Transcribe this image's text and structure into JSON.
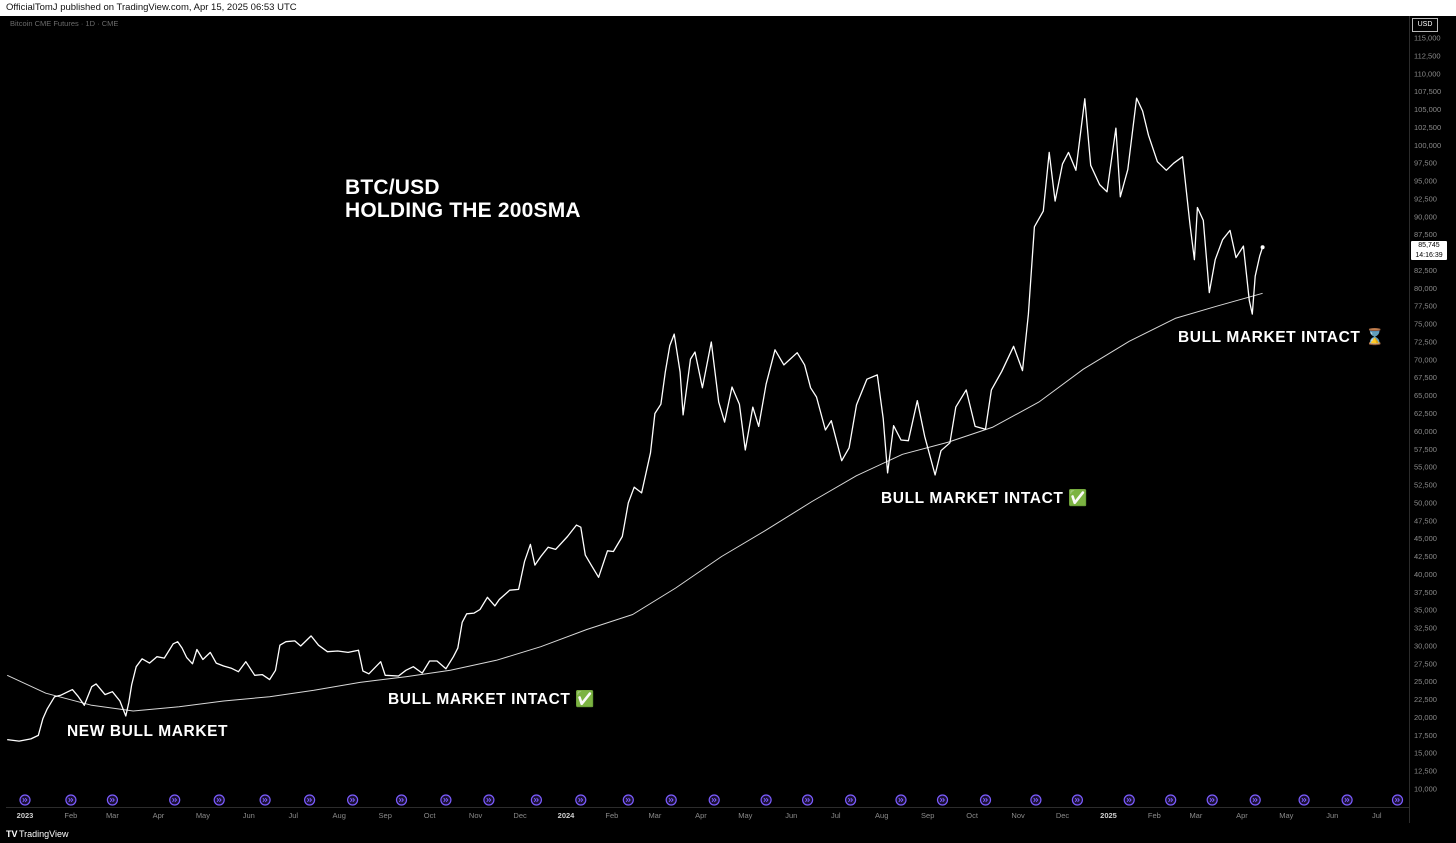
{
  "header": {
    "published_by": "OfficialTomJ published on TradingView.com, Apr 15, 2025 06:53 UTC"
  },
  "instrument": "Bitcoin CME Futures · 1D · CME",
  "currency": "USD",
  "last_price": {
    "value": "85,745",
    "countdown": "14:16:39"
  },
  "footer": {
    "logo": "TV",
    "brand": "TradingView"
  },
  "title_lines": [
    "BTC/USD",
    "HOLDING THE 200SMA"
  ],
  "annotations": {
    "new_bull": "NEW BULL MARKET",
    "intact_1": "BULL MARKET INTACT ✅",
    "intact_2": "BULL MARKET INTACT ✅",
    "intact_3": "BULL MARKET INTACT ⌛"
  },
  "colors": {
    "background": "#000000",
    "price_line": "#ffffff",
    "sma_line": "#d8d8d8",
    "event_marker": "#7b5cff"
  },
  "chart_data": {
    "type": "line",
    "title": "BTC/USD HOLDING THE 200SMA",
    "xlabel": "",
    "ylabel": "",
    "ylim": [
      8750,
      116250
    ],
    "y_ticks": [
      "115,000",
      "112,500",
      "110,000",
      "107,500",
      "105,000",
      "102,500",
      "100,000",
      "97,500",
      "95,000",
      "92,500",
      "90,000",
      "87,500",
      "85,000",
      "82,500",
      "80,000",
      "77,500",
      "75,000",
      "72,500",
      "70,000",
      "67,500",
      "65,000",
      "62,500",
      "60,000",
      "57,500",
      "55,000",
      "52,500",
      "50,000",
      "47,500",
      "45,000",
      "42,500",
      "40,000",
      "37,500",
      "35,000",
      "32,500",
      "30,000",
      "27,500",
      "25,000",
      "22,500",
      "20,000",
      "17,500",
      "15,000",
      "12,500",
      "10,000"
    ],
    "x_ticks": [
      {
        "label": "2023",
        "date": "2023-01-01",
        "major": true
      },
      {
        "label": "Feb",
        "date": "2023-02-01"
      },
      {
        "label": "Mar",
        "date": "2023-03-01"
      },
      {
        "label": "Apr",
        "date": "2023-04-01"
      },
      {
        "label": "May",
        "date": "2023-05-01"
      },
      {
        "label": "Jun",
        "date": "2023-06-01"
      },
      {
        "label": "Jul",
        "date": "2023-07-01"
      },
      {
        "label": "Aug",
        "date": "2023-08-01"
      },
      {
        "label": "Sep",
        "date": "2023-09-01"
      },
      {
        "label": "Oct",
        "date": "2023-10-01"
      },
      {
        "label": "Nov",
        "date": "2023-11-01"
      },
      {
        "label": "Dec",
        "date": "2023-12-01"
      },
      {
        "label": "2024",
        "date": "2024-01-01",
        "major": true
      },
      {
        "label": "Feb",
        "date": "2024-02-01"
      },
      {
        "label": "Mar",
        "date": "2024-03-01"
      },
      {
        "label": "Apr",
        "date": "2024-04-01"
      },
      {
        "label": "May",
        "date": "2024-05-01"
      },
      {
        "label": "Jun",
        "date": "2024-06-01"
      },
      {
        "label": "Jul",
        "date": "2024-07-01"
      },
      {
        "label": "Aug",
        "date": "2024-08-01"
      },
      {
        "label": "Sep",
        "date": "2024-09-01"
      },
      {
        "label": "Oct",
        "date": "2024-10-01"
      },
      {
        "label": "Nov",
        "date": "2024-11-01"
      },
      {
        "label": "Dec",
        "date": "2024-12-01"
      },
      {
        "label": "2025",
        "date": "2025-01-01",
        "major": true
      },
      {
        "label": "Feb",
        "date": "2025-02-01"
      },
      {
        "label": "Mar",
        "date": "2025-03-01"
      },
      {
        "label": "Apr",
        "date": "2025-04-01"
      },
      {
        "label": "May",
        "date": "2025-05-01"
      },
      {
        "label": "Jun",
        "date": "2025-06-01"
      },
      {
        "label": "Jul",
        "date": "2025-07-01"
      }
    ],
    "series": [
      {
        "name": "",
        "points": [
          [
            "2022-12-20",
            16900
          ],
          [
            "2022-12-28",
            16700
          ],
          [
            "2023-01-05",
            17000
          ],
          [
            "2023-01-10",
            17500
          ],
          [
            "2023-01-13",
            19800
          ],
          [
            "2023-01-16",
            21200
          ],
          [
            "2023-01-21",
            22900
          ],
          [
            "2023-01-25",
            23100
          ],
          [
            "2023-01-30",
            23600
          ],
          [
            "2023-02-02",
            23900
          ],
          [
            "2023-02-06",
            22900
          ],
          [
            "2023-02-10",
            21700
          ],
          [
            "2023-02-15",
            24300
          ],
          [
            "2023-02-18",
            24700
          ],
          [
            "2023-02-24",
            23200
          ],
          [
            "2023-03-01",
            23600
          ],
          [
            "2023-03-06",
            22300
          ],
          [
            "2023-03-10",
            20200
          ],
          [
            "2023-03-12",
            22100
          ],
          [
            "2023-03-14",
            24600
          ],
          [
            "2023-03-17",
            27100
          ],
          [
            "2023-03-21",
            28200
          ],
          [
            "2023-03-26",
            27600
          ],
          [
            "2023-03-31",
            28500
          ],
          [
            "2023-04-05",
            28300
          ],
          [
            "2023-04-11",
            30300
          ],
          [
            "2023-04-14",
            30600
          ],
          [
            "2023-04-17",
            29700
          ],
          [
            "2023-04-20",
            28400
          ],
          [
            "2023-04-24",
            27500
          ],
          [
            "2023-04-27",
            29500
          ],
          [
            "2023-05-01",
            28100
          ],
          [
            "2023-05-06",
            29100
          ],
          [
            "2023-05-10",
            27600
          ],
          [
            "2023-05-15",
            27200
          ],
          [
            "2023-05-20",
            26900
          ],
          [
            "2023-05-25",
            26400
          ],
          [
            "2023-05-30",
            27800
          ],
          [
            "2023-06-05",
            25900
          ],
          [
            "2023-06-10",
            26000
          ],
          [
            "2023-06-15",
            25300
          ],
          [
            "2023-06-19",
            26600
          ],
          [
            "2023-06-22",
            30100
          ],
          [
            "2023-06-26",
            30600
          ],
          [
            "2023-07-02",
            30700
          ],
          [
            "2023-07-06",
            30000
          ],
          [
            "2023-07-13",
            31400
          ],
          [
            "2023-07-18",
            30100
          ],
          [
            "2023-07-24",
            29200
          ],
          [
            "2023-07-31",
            29300
          ],
          [
            "2023-08-07",
            29100
          ],
          [
            "2023-08-14",
            29400
          ],
          [
            "2023-08-17",
            26500
          ],
          [
            "2023-08-21",
            26100
          ],
          [
            "2023-08-29",
            27800
          ],
          [
            "2023-09-01",
            25900
          ],
          [
            "2023-09-10",
            25800
          ],
          [
            "2023-09-15",
            26600
          ],
          [
            "2023-09-20",
            27100
          ],
          [
            "2023-09-26",
            26200
          ],
          [
            "2023-10-01",
            27900
          ],
          [
            "2023-10-06",
            27900
          ],
          [
            "2023-10-12",
            26800
          ],
          [
            "2023-10-17",
            28500
          ],
          [
            "2023-10-20",
            29700
          ],
          [
            "2023-10-23",
            33300
          ],
          [
            "2023-10-26",
            34500
          ],
          [
            "2023-10-31",
            34600
          ],
          [
            "2023-11-04",
            35100
          ],
          [
            "2023-11-09",
            36800
          ],
          [
            "2023-11-14",
            35600
          ],
          [
            "2023-11-17",
            36500
          ],
          [
            "2023-11-24",
            37800
          ],
          [
            "2023-11-30",
            37900
          ],
          [
            "2023-12-04",
            41800
          ],
          [
            "2023-12-08",
            44200
          ],
          [
            "2023-12-11",
            41300
          ],
          [
            "2023-12-15",
            42500
          ],
          [
            "2023-12-20",
            43800
          ],
          [
            "2023-12-25",
            43500
          ],
          [
            "2024-01-02",
            45300
          ],
          [
            "2024-01-08",
            46900
          ],
          [
            "2024-01-11",
            46600
          ],
          [
            "2024-01-14",
            42700
          ],
          [
            "2024-01-18",
            41300
          ],
          [
            "2024-01-23",
            39600
          ],
          [
            "2024-01-29",
            43300
          ],
          [
            "2024-02-02",
            43200
          ],
          [
            "2024-02-08",
            45300
          ],
          [
            "2024-02-12",
            50000
          ],
          [
            "2024-02-16",
            52200
          ],
          [
            "2024-02-21",
            51400
          ],
          [
            "2024-02-27",
            57000
          ],
          [
            "2024-03-01",
            62500
          ],
          [
            "2024-03-05",
            63800
          ],
          [
            "2024-03-08",
            68300
          ],
          [
            "2024-03-11",
            72000
          ],
          [
            "2024-03-14",
            73600
          ],
          [
            "2024-03-18",
            68300
          ],
          [
            "2024-03-20",
            62300
          ],
          [
            "2024-03-25",
            70100
          ],
          [
            "2024-03-28",
            71100
          ],
          [
            "2024-04-02",
            66100
          ],
          [
            "2024-04-08",
            72500
          ],
          [
            "2024-04-13",
            64100
          ],
          [
            "2024-04-17",
            61300
          ],
          [
            "2024-04-22",
            66200
          ],
          [
            "2024-04-27",
            63800
          ],
          [
            "2024-05-01",
            57400
          ],
          [
            "2024-05-06",
            63400
          ],
          [
            "2024-05-10",
            60700
          ],
          [
            "2024-05-15",
            66600
          ],
          [
            "2024-05-21",
            71400
          ],
          [
            "2024-05-27",
            69300
          ],
          [
            "2024-06-05",
            71000
          ],
          [
            "2024-06-10",
            69300
          ],
          [
            "2024-06-14",
            66100
          ],
          [
            "2024-06-18",
            64800
          ],
          [
            "2024-06-24",
            60200
          ],
          [
            "2024-06-28",
            61500
          ],
          [
            "2024-07-05",
            55900
          ],
          [
            "2024-07-10",
            57700
          ],
          [
            "2024-07-15",
            63700
          ],
          [
            "2024-07-22",
            67300
          ],
          [
            "2024-07-29",
            67900
          ],
          [
            "2024-08-02",
            61800
          ],
          [
            "2024-08-05",
            54200
          ],
          [
            "2024-08-09",
            60800
          ],
          [
            "2024-08-14",
            58800
          ],
          [
            "2024-08-19",
            58700
          ],
          [
            "2024-08-25",
            64300
          ],
          [
            "2024-08-30",
            59300
          ],
          [
            "2024-09-06",
            53900
          ],
          [
            "2024-09-10",
            57300
          ],
          [
            "2024-09-16",
            58400
          ],
          [
            "2024-09-20",
            63400
          ],
          [
            "2024-09-27",
            65800
          ],
          [
            "2024-10-03",
            60700
          ],
          [
            "2024-10-10",
            60300
          ],
          [
            "2024-10-14",
            65800
          ],
          [
            "2024-10-21",
            68400
          ],
          [
            "2024-10-29",
            71900
          ],
          [
            "2024-11-04",
            68500
          ],
          [
            "2024-11-08",
            76400
          ],
          [
            "2024-11-12",
            88600
          ],
          [
            "2024-11-18",
            90800
          ],
          [
            "2024-11-22",
            99000
          ],
          [
            "2024-11-26",
            92200
          ],
          [
            "2024-12-01",
            97400
          ],
          [
            "2024-12-05",
            99000
          ],
          [
            "2024-12-10",
            96500
          ],
          [
            "2024-12-16",
            106500
          ],
          [
            "2024-12-20",
            97200
          ],
          [
            "2024-12-26",
            94500
          ],
          [
            "2024-12-31",
            93500
          ],
          [
            "2025-01-06",
            102400
          ],
          [
            "2025-01-09",
            92800
          ],
          [
            "2025-01-14",
            96600
          ],
          [
            "2025-01-20",
            106600
          ],
          [
            "2025-01-24",
            104800
          ],
          [
            "2025-01-28",
            101400
          ],
          [
            "2025-02-03",
            97700
          ],
          [
            "2025-02-09",
            96500
          ],
          [
            "2025-02-14",
            97500
          ],
          [
            "2025-02-20",
            98400
          ],
          [
            "2025-02-25",
            88900
          ],
          [
            "2025-02-28",
            84000
          ],
          [
            "2025-03-02",
            91300
          ],
          [
            "2025-03-06",
            89500
          ],
          [
            "2025-03-10",
            79400
          ],
          [
            "2025-03-14",
            84000
          ],
          [
            "2025-03-19",
            86800
          ],
          [
            "2025-03-24",
            88100
          ],
          [
            "2025-03-28",
            84300
          ],
          [
            "2025-04-02",
            85900
          ],
          [
            "2025-04-06",
            78300
          ],
          [
            "2025-04-08",
            76400
          ],
          [
            "2025-04-10",
            81700
          ],
          [
            "2025-04-13",
            84500
          ],
          [
            "2025-04-15",
            85745
          ]
        ]
      },
      {
        "name": "",
        "points": [
          [
            "2022-12-20",
            25900
          ],
          [
            "2023-01-15",
            23400
          ],
          [
            "2023-02-15",
            21700
          ],
          [
            "2023-03-15",
            20900
          ],
          [
            "2023-04-15",
            21500
          ],
          [
            "2023-05-15",
            22300
          ],
          [
            "2023-06-15",
            22900
          ],
          [
            "2023-07-15",
            23800
          ],
          [
            "2023-08-15",
            24900
          ],
          [
            "2023-09-15",
            25700
          ],
          [
            "2023-10-15",
            26600
          ],
          [
            "2023-11-15",
            28000
          ],
          [
            "2023-12-15",
            29900
          ],
          [
            "2024-01-15",
            32300
          ],
          [
            "2024-02-15",
            34400
          ],
          [
            "2024-03-15",
            38100
          ],
          [
            "2024-04-15",
            42500
          ],
          [
            "2024-05-15",
            46200
          ],
          [
            "2024-06-15",
            50200
          ],
          [
            "2024-07-15",
            53800
          ],
          [
            "2024-08-15",
            56800
          ],
          [
            "2024-09-15",
            58500
          ],
          [
            "2024-10-15",
            60600
          ],
          [
            "2024-11-15",
            64100
          ],
          [
            "2024-12-15",
            68700
          ],
          [
            "2025-01-15",
            72600
          ],
          [
            "2025-02-15",
            75800
          ],
          [
            "2025-03-15",
            77500
          ],
          [
            "2025-04-15",
            79300
          ]
        ]
      }
    ],
    "event_markers": [
      "2023-01-01",
      "2023-02-01",
      "2023-03-01",
      "2023-04-12",
      "2023-05-12",
      "2023-06-12",
      "2023-07-12",
      "2023-08-10",
      "2023-09-12",
      "2023-10-12",
      "2023-11-10",
      "2023-12-12",
      "2024-01-11",
      "2024-02-12",
      "2024-03-12",
      "2024-04-10",
      "2024-05-15",
      "2024-06-12",
      "2024-07-11",
      "2024-08-14",
      "2024-09-11",
      "2024-10-10",
      "2024-11-13",
      "2024-12-11",
      "2025-01-15",
      "2025-02-12",
      "2025-03-12",
      "2025-04-10",
      "2025-05-13",
      "2025-06-11",
      "2025-07-15"
    ]
  }
}
